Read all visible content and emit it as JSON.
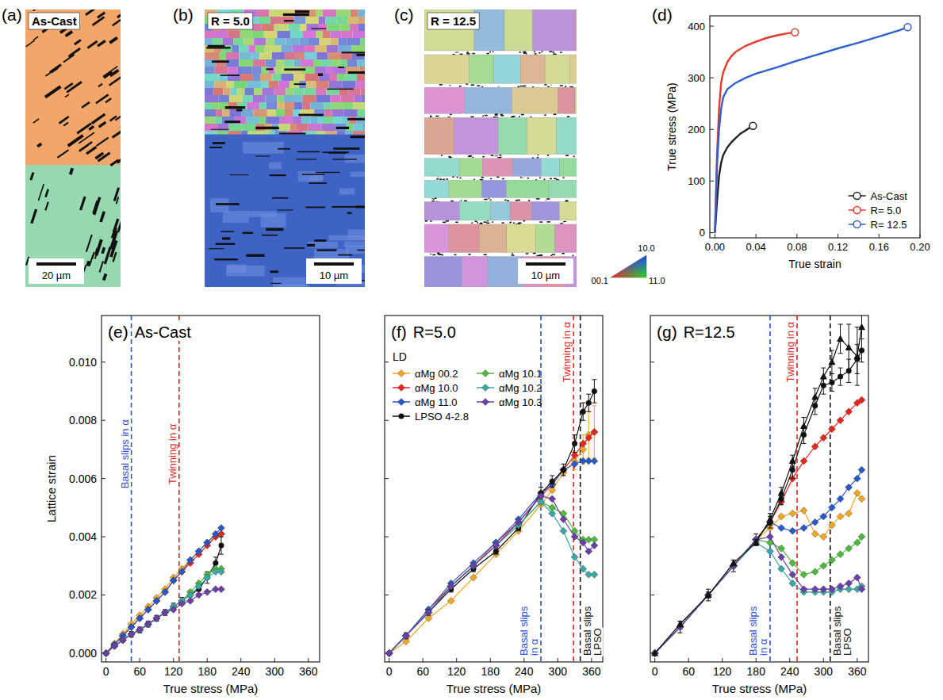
{
  "chart_data": [
    {
      "type": "line",
      "panel": "(d)",
      "x_label": "True strain",
      "y_label": "True stress (MPa)",
      "xlim": [
        -0.005,
        0.2
      ],
      "ylim": [
        -10,
        420
      ],
      "xticks": [
        {
          "value": 0,
          "label": "0.00"
        },
        0.04,
        0.08,
        0.12,
        0.16,
        {
          "value": 0.2,
          "label": "0.20"
        }
      ],
      "yticks": [
        0,
        100,
        200,
        300,
        400
      ],
      "legend": "lower right",
      "marker": "end-circle",
      "series": [
        {
          "name": "As-Cast",
          "color": "#222222",
          "x": [
            0,
            0.002,
            0.004,
            0.006,
            0.008,
            0.012,
            0.016,
            0.02,
            0.025,
            0.03,
            0.035,
            0.037
          ],
          "values": [
            0,
            60,
            110,
            135,
            150,
            165,
            175,
            183,
            192,
            198,
            205,
            207
          ]
        },
        {
          "name": "R= 5.0",
          "color": "#e53a2a",
          "x": [
            0,
            0.002,
            0.004,
            0.006,
            0.008,
            0.012,
            0.016,
            0.02,
            0.03,
            0.04,
            0.05,
            0.06,
            0.07,
            0.078
          ],
          "values": [
            0,
            150,
            240,
            290,
            310,
            330,
            342,
            350,
            362,
            370,
            377,
            382,
            386,
            388
          ]
        },
        {
          "name": "R= 12.5",
          "color": "#2f5fd0",
          "x": [
            0,
            0.002,
            0.004,
            0.006,
            0.008,
            0.012,
            0.02,
            0.03,
            0.04,
            0.06,
            0.08,
            0.1,
            0.12,
            0.14,
            0.16,
            0.18,
            0.188
          ],
          "values": [
            0,
            130,
            200,
            240,
            262,
            278,
            290,
            300,
            308,
            320,
            333,
            345,
            357,
            368,
            380,
            392,
            398
          ]
        }
      ]
    },
    {
      "type": "line",
      "panel": "(e)",
      "title": "As-Cast",
      "x_label": "True stress (MPa)",
      "y_label": "Lattice strain",
      "xlim": [
        -8,
        380
      ],
      "ylim": [
        -0.0003,
        0.0116
      ],
      "xticks": [
        0,
        60,
        120,
        180,
        240,
        300,
        360
      ],
      "yticks": [
        {
          "value": 0,
          "label": "0.000"
        },
        {
          "value": 0.002,
          "label": "0.002"
        },
        {
          "value": 0.004,
          "label": "0.004"
        },
        {
          "value": 0.006,
          "label": "0.006"
        },
        {
          "value": 0.008,
          "label": "0.008"
        },
        {
          "value": 0.01,
          "label": "0.010"
        }
      ],
      "x": [
        0,
        15,
        30,
        45,
        60,
        75,
        90,
        105,
        120,
        135,
        150,
        165,
        180,
        195,
        205
      ],
      "annotations": [
        {
          "text": "Basal slips in α",
          "x": 45,
          "color": "#2a4fd6",
          "position": "middle-left"
        },
        {
          "text": "Twinning in α",
          "x": 130,
          "color": "#d9261c",
          "position": "middle-left"
        }
      ],
      "series": [
        {
          "name": "αMg 00.2",
          "color": "#f5a623",
          "marker": "diamond",
          "values": [
            0,
            0.00033,
            0.00066,
            0.001,
            0.0013,
            0.0016,
            0.0019,
            0.0022,
            0.0026,
            0.0029,
            0.0032,
            0.0035,
            0.0038,
            0.004,
            0.0041
          ]
        },
        {
          "name": "αMg 10.0",
          "color": "#e8261c",
          "marker": "diamond",
          "values": [
            0,
            0.0003,
            0.0006,
            0.0009,
            0.0012,
            0.0015,
            0.0018,
            0.0021,
            0.0025,
            0.0028,
            0.0031,
            0.0034,
            0.0037,
            0.004,
            0.0041
          ]
        },
        {
          "name": "αMg 11.0",
          "color": "#2659c9",
          "marker": "diamond",
          "values": [
            0,
            0.0003,
            0.0006,
            0.0009,
            0.0012,
            0.0015,
            0.0018,
            0.0021,
            0.0025,
            0.0028,
            0.0032,
            0.0035,
            0.0038,
            0.0041,
            0.0043
          ]
        },
        {
          "name": "LPSO 4-2.8",
          "color": "#111111",
          "marker": "circle",
          "values": [
            0,
            0.00025,
            0.00045,
            0.00065,
            0.0008,
            0.001,
            0.0012,
            0.0014,
            0.0016,
            0.0018,
            0.002,
            0.0022,
            0.0026,
            0.0031,
            0.0037
          ],
          "errors": [
            0,
            5e-05,
            5e-05,
            0.0001,
            0.0001,
            0.0001,
            0.0001,
            0.0001,
            0.00012,
            0.00012,
            0.00015,
            0.00015,
            0.0002,
            0.0002,
            0.0003
          ]
        },
        {
          "name": "αMg 10.1",
          "color": "#4cbb3c",
          "marker": "diamond",
          "values": [
            0,
            0.00025,
            0.00045,
            0.00065,
            0.0008,
            0.001,
            0.0012,
            0.0014,
            0.0016,
            0.0018,
            0.0021,
            0.0024,
            0.0027,
            0.0029,
            0.0029
          ]
        },
        {
          "name": "αMg 10.2",
          "color": "#3aa9a5",
          "marker": "diamond",
          "values": [
            0,
            0.00025,
            0.00045,
            0.00065,
            0.0008,
            0.001,
            0.0012,
            0.0014,
            0.0016,
            0.0018,
            0.002,
            0.0023,
            0.0026,
            0.0028,
            0.0028
          ]
        },
        {
          "name": "αMg 10.3",
          "color": "#6a3fa8",
          "marker": "diamond",
          "values": [
            0,
            0.00025,
            0.00045,
            0.00065,
            0.0008,
            0.001,
            0.0012,
            0.0014,
            0.0015,
            0.0017,
            0.0018,
            0.002,
            0.0021,
            0.0022,
            0.0022
          ]
        }
      ]
    },
    {
      "type": "line",
      "panel": "(f)",
      "title": "R=5.0",
      "x_label": "True stress (MPa)",
      "tick_labels": "x",
      "xlim": [
        -8,
        380
      ],
      "ylim": [
        -0.0003,
        0.0116
      ],
      "xticks": [
        0,
        60,
        120,
        180,
        240,
        300,
        360
      ],
      "yticks": [
        0,
        0.002,
        0.004,
        0.006,
        0.008,
        0.01
      ],
      "legend": "upper left",
      "legend_title": "LD",
      "x": [
        0,
        30,
        70,
        110,
        150,
        190,
        230,
        270,
        290,
        310,
        330,
        345,
        355,
        365
      ],
      "annotations": [
        {
          "text": "Basal slips in α",
          "x": 270,
          "color": "#2a4fd6",
          "position": "bottom-left"
        },
        {
          "text": "Twinning in α",
          "x": 328,
          "color": "#d9261c",
          "position": "top-left"
        },
        {
          "text": "Basal slips LPSO",
          "x": 340,
          "color": "#111111",
          "position": "bottom-right"
        }
      ],
      "series": [
        {
          "name": "αMg 00.2",
          "color": "#f5a623",
          "marker": "diamond",
          "values": [
            0,
            0.0004,
            0.0012,
            0.0018,
            0.0026,
            0.0034,
            0.0042,
            0.0051,
            0.0056,
            0.0062,
            0.0066,
            0.007,
            0.0075,
            0.0076
          ],
          "errors": [
            0,
            0,
            0,
            0,
            0,
            0,
            0,
            0,
            0,
            0,
            0.0003,
            0.0005,
            0.0008,
            0.0009
          ]
        },
        {
          "name": "αMg 10.0",
          "color": "#e8261c",
          "marker": "diamond",
          "values": [
            0,
            0.0006,
            0.0015,
            0.0023,
            0.003,
            0.0038,
            0.0045,
            0.0054,
            0.0058,
            0.0063,
            0.0068,
            0.0072,
            0.0074,
            0.0076
          ]
        },
        {
          "name": "αMg 11.0",
          "color": "#2659c9",
          "marker": "diamond",
          "values": [
            0,
            0.0006,
            0.0015,
            0.0024,
            0.0031,
            0.0038,
            0.0046,
            0.0055,
            0.0058,
            0.0063,
            0.0065,
            0.0066,
            0.0066,
            0.0066
          ]
        },
        {
          "name": "LPSO 4-2.8",
          "color": "#111111",
          "marker": "circle",
          "values": [
            0,
            0.0006,
            0.0014,
            0.0022,
            0.0029,
            0.0035,
            0.0043,
            0.0055,
            0.0059,
            0.0063,
            0.0072,
            0.0083,
            0.0086,
            0.009
          ],
          "errors": [
            0,
            0.0001,
            0.0001,
            0.0001,
            0.0001,
            0.0001,
            0.0001,
            0.0002,
            0.0002,
            0.0002,
            0.0003,
            0.0003,
            0.0003,
            0.0004
          ]
        },
        {
          "name": "αMg 10.1",
          "color": "#4cbb3c",
          "marker": "diamond",
          "values": [
            0,
            0.0006,
            0.0014,
            0.0023,
            0.003,
            0.0037,
            0.0044,
            0.0052,
            0.005,
            0.0048,
            0.0042,
            0.0039,
            0.0039,
            0.0039
          ]
        },
        {
          "name": "αMg 10.2",
          "color": "#3aa9a5",
          "marker": "diamond",
          "values": [
            0,
            0.0006,
            0.0014,
            0.0023,
            0.003,
            0.0037,
            0.0044,
            0.0052,
            0.0048,
            0.0042,
            0.0033,
            0.0029,
            0.0027,
            0.0027
          ]
        },
        {
          "name": "αMg 10.3",
          "color": "#6a3fa8",
          "marker": "diamond",
          "values": [
            0,
            0.0006,
            0.0014,
            0.0023,
            0.003,
            0.0037,
            0.0045,
            0.0054,
            0.0053,
            0.0046,
            0.004,
            0.0038,
            0.0035,
            0.0037
          ]
        }
      ]
    },
    {
      "type": "line",
      "panel": "(g)",
      "title": "R=12.5",
      "x_label": "True stress (MPa)",
      "tick_labels": "x",
      "xlim": [
        -8,
        380
      ],
      "ylim": [
        -0.0003,
        0.0116
      ],
      "xticks": [
        0,
        60,
        120,
        180,
        240,
        300,
        360
      ],
      "yticks": [
        0,
        0.002,
        0.004,
        0.006,
        0.008,
        0.01
      ],
      "x": [
        0,
        45,
        95,
        140,
        180,
        205,
        225,
        245,
        265,
        285,
        300,
        315,
        330,
        345,
        360,
        368
      ],
      "annotations": [
        {
          "text": "Basal slips in α",
          "x": 205,
          "color": "#2a4fd6",
          "position": "bottom-left"
        },
        {
          "text": "Twinning in α",
          "x": 253,
          "color": "#d9261c",
          "position": "top-left"
        },
        {
          "text": "Basal slips LPSO",
          "x": 312,
          "color": "#111111",
          "position": "bottom-right"
        }
      ],
      "series": [
        {
          "name": "αMg 00.2",
          "color": "#f5a623",
          "marker": "diamond",
          "values": [
            0,
            0.0009,
            0.002,
            0.003,
            0.0039,
            0.0043,
            0.0047,
            0.0048,
            0.0049,
            0.0041,
            0.004,
            0.0044,
            0.0047,
            0.0048,
            0.0055,
            0.0053
          ]
        },
        {
          "name": "αMg 10.0",
          "color": "#e8261c",
          "marker": "diamond",
          "values": [
            0,
            0.0009,
            0.002,
            0.003,
            0.0039,
            0.0045,
            0.0052,
            0.006,
            0.0066,
            0.0071,
            0.0074,
            0.0077,
            0.008,
            0.0083,
            0.0086,
            0.0087
          ]
        },
        {
          "name": "αMg 11.0",
          "color": "#2659c9",
          "marker": "diamond",
          "values": [
            0,
            0.0009,
            0.002,
            0.003,
            0.0039,
            0.0045,
            0.0043,
            0.0042,
            0.0043,
            0.0045,
            0.0047,
            0.005,
            0.0053,
            0.0057,
            0.006,
            0.0063
          ]
        },
        {
          "name": "LPSO 4-2.8",
          "color": "#111111",
          "marker": "circle",
          "values": [
            0,
            0.0009,
            0.002,
            0.003,
            0.0039,
            0.0045,
            0.0053,
            0.0063,
            0.0075,
            0.0085,
            0.0092,
            0.0093,
            0.0095,
            0.0097,
            0.0101,
            0.0104
          ],
          "errors": [
            0,
            0.0002,
            0.0002,
            0.0002,
            0.0002,
            0.0002,
            0.0002,
            0.0003,
            0.0003,
            0.0003,
            0.0003,
            0.0003,
            0.0003,
            0.0004,
            0.0005,
            0.0004
          ]
        },
        {
          "name": "αMg 10.1",
          "color": "#4cbb3c",
          "marker": "diamond",
          "values": [
            0,
            0.0009,
            0.002,
            0.003,
            0.0039,
            0.0038,
            0.0036,
            0.0031,
            0.0027,
            0.0028,
            0.003,
            0.0032,
            0.0034,
            0.0036,
            0.0038,
            0.004
          ]
        },
        {
          "name": "αMg 10.2",
          "color": "#3aa9a5",
          "marker": "diamond",
          "values": [
            0,
            0.0009,
            0.002,
            0.003,
            0.0038,
            0.0035,
            0.0029,
            0.0024,
            0.0021,
            0.0021,
            0.0021,
            0.0021,
            0.0022,
            0.0022,
            0.0022,
            0.0023
          ]
        },
        {
          "name": "αMg 10.3",
          "color": "#6a3fa8",
          "marker": "diamond",
          "values": [
            0,
            0.0009,
            0.002,
            0.003,
            0.0039,
            0.004,
            0.0033,
            0.0027,
            0.0022,
            0.0022,
            0.0022,
            0.0022,
            0.0023,
            0.0024,
            0.0026,
            0.0022
          ]
        },
        {
          "color": "#111111",
          "marker": "triangle",
          "values": [
            0,
            0.001,
            0.002,
            0.0031,
            0.0038,
            0.0046,
            0.0055,
            0.0066,
            0.0078,
            0.0088,
            0.0095,
            0.01,
            0.0108,
            0.0105,
            0.0102,
            0.0112
          ],
          "errors": [
            0,
            0.0001,
            0.0001,
            0.0001,
            0.0001,
            0.0002,
            0.0002,
            0.0002,
            0.0003,
            0.0003,
            0.0003,
            0.0004,
            0.0005,
            0.0008,
            0.001,
            0.0008
          ]
        }
      ]
    }
  ],
  "micrographs": [
    {
      "panel": "(a)",
      "label": "As-Cast",
      "scale_bar": "20 µm"
    },
    {
      "panel": "(b)",
      "label": "R = 5.0",
      "scale_bar": "10 µm"
    },
    {
      "panel": "(c)",
      "label": "R = 12.5",
      "scale_bar": "10 µm"
    }
  ],
  "ipf_key": {
    "labels": [
      "10.0",
      "00.1",
      "11.0"
    ]
  }
}
